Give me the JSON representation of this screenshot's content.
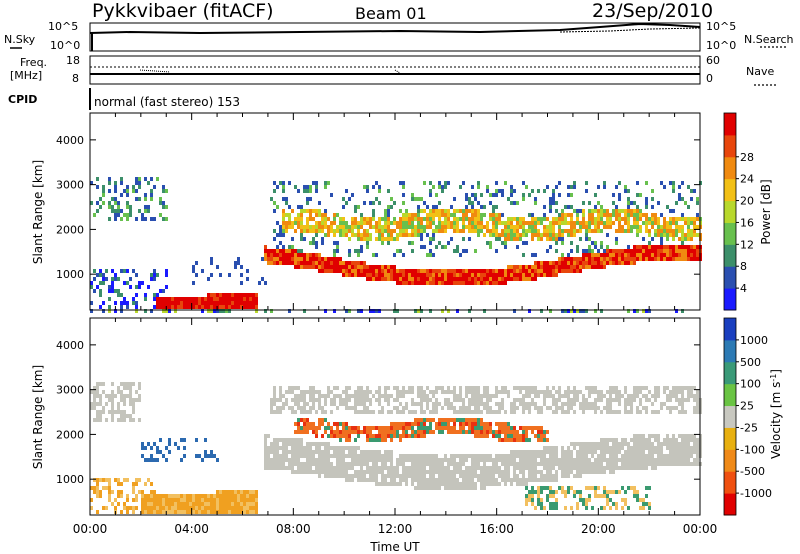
{
  "header": {
    "radar": "Pykkvibaer (fitACF)",
    "beam": "Beam 01",
    "date": "23/Sep/2010"
  },
  "noise_panel": {
    "left_label": "N.Sky",
    "left_ticks": [
      "10^5",
      "10^0"
    ],
    "right_label": "N.Search",
    "right_ticks": [
      "10^5",
      "10^0"
    ]
  },
  "freq_panel": {
    "left_label_1": "Freq.",
    "left_label_2": "[MHz]",
    "left_ticks": [
      "18",
      "8"
    ],
    "right_label": "Nave",
    "right_ticks": [
      "60",
      "0"
    ]
  },
  "cpid": {
    "label": "CPID",
    "text": "normal (fast stereo) 153"
  },
  "chart_data": [
    {
      "type": "heatmap",
      "panel": "power",
      "ylabel": "Slant Range [km]",
      "yticks": [
        1000,
        2000,
        3000,
        4000
      ],
      "ylim": [
        200,
        4600
      ],
      "xlim": [
        0,
        24
      ],
      "colorbar": {
        "label": "Power [dB]",
        "ticks": [
          "4",
          "8",
          "12",
          "16",
          "20",
          "24",
          "28"
        ],
        "colors": [
          "#1a1aff",
          "#2a4fb0",
          "#3c8f6a",
          "#68c04e",
          "#b8d82c",
          "#f2c016",
          "#f08a10",
          "#e8460c",
          "#e00000"
        ]
      }
    },
    {
      "type": "heatmap",
      "panel": "velocity",
      "ylabel": "Slant Range [km]",
      "yticks": [
        1000,
        2000,
        3000,
        4000
      ],
      "ylim": [
        200,
        4600
      ],
      "xlim": [
        0,
        24
      ],
      "xlabel": "Time UT",
      "xticks": [
        "00:00",
        "04:00",
        "08:00",
        "12:00",
        "16:00",
        "20:00",
        "00:00"
      ],
      "colorbar": {
        "label": "Velocity [m s^-1]",
        "ticks": [
          "1000",
          "500",
          "100",
          "25",
          "-25",
          "-100",
          "-500",
          "-1000"
        ],
        "colors": [
          "#1a3fbf",
          "#2c7ab4",
          "#3a9a78",
          "#6ac444",
          "#c8c8c0",
          "#e8b010",
          "#f08a18",
          "#f05010",
          "#e00000"
        ]
      }
    }
  ]
}
